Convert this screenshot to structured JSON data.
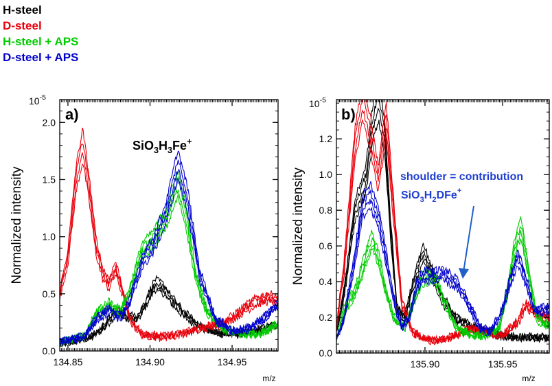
{
  "colors": {
    "H-steel": "#000000",
    "D-steel": "#e8000b",
    "H-steel + APS": "#00cc00",
    "D-steel + APS": "#0000cc"
  },
  "legend": [
    {
      "label": "H-steel",
      "color": "#000000"
    },
    {
      "label": "D-steel",
      "color": "#e8000b"
    },
    {
      "label": "H-steel + APS",
      "color": "#00cc00"
    },
    {
      "label": "D-steel + APS",
      "color": "#0000cc"
    }
  ],
  "chart_data": [
    {
      "type": "line",
      "panel_label": "a)",
      "annotation": {
        "base": "SiO",
        "sub1": "3",
        "mid": "H",
        "sub2": "3",
        "end": "Fe",
        "sup": "+"
      },
      "xlabel": "m/z",
      "ylabel": "Normalized intensity",
      "y_exponent_label": "10",
      "y_exponent_sup": "-5",
      "xlim": [
        134.845,
        134.978
      ],
      "ylim": [
        0,
        2.2
      ],
      "xticks": [
        134.85,
        134.9,
        134.95
      ],
      "xtick_labels": [
        "134.85",
        "134.90",
        "134.95"
      ],
      "yticks": [
        0.0,
        0.5,
        1.0,
        1.5,
        2.0
      ],
      "ytick_labels": [
        "0.0",
        "0.5",
        "1.0",
        "1.5",
        "2.0"
      ],
      "series": [
        {
          "name": "H-steel",
          "color": "#000000",
          "x": [
            134.845,
            134.855,
            134.865,
            134.872,
            134.88,
            134.886,
            134.893,
            134.898,
            134.903,
            134.908,
            134.913,
            134.92,
            134.93,
            134.94,
            134.95,
            134.96,
            134.97,
            134.978
          ],
          "y": [
            0.07,
            0.09,
            0.13,
            0.22,
            0.36,
            0.3,
            0.3,
            0.45,
            0.6,
            0.56,
            0.46,
            0.34,
            0.22,
            0.17,
            0.15,
            0.17,
            0.2,
            0.24
          ]
        },
        {
          "name": "D-steel",
          "color": "#e8000b",
          "x": [
            134.845,
            134.85,
            134.855,
            134.859,
            134.863,
            134.867,
            134.871,
            134.875,
            134.879,
            134.883,
            134.888,
            134.895,
            134.905,
            134.915,
            134.925,
            134.935,
            134.945,
            134.955,
            134.965,
            134.972,
            134.978
          ],
          "y": [
            0.5,
            0.85,
            1.55,
            1.85,
            1.45,
            0.95,
            0.7,
            0.6,
            0.75,
            0.55,
            0.28,
            0.15,
            0.13,
            0.14,
            0.18,
            0.22,
            0.25,
            0.35,
            0.45,
            0.48,
            0.46
          ]
        },
        {
          "name": "H-steel + APS",
          "color": "#00cc00",
          "x": [
            134.845,
            134.86,
            134.868,
            134.875,
            134.882,
            134.888,
            134.895,
            134.902,
            134.91,
            134.917,
            134.922,
            134.928,
            134.935,
            134.945,
            134.955,
            134.965,
            134.97,
            134.978
          ],
          "y": [
            0.08,
            0.13,
            0.35,
            0.42,
            0.35,
            0.55,
            0.9,
            1.0,
            1.2,
            1.5,
            1.2,
            0.65,
            0.35,
            0.2,
            0.15,
            0.15,
            0.18,
            0.24
          ]
        },
        {
          "name": "D-steel + APS",
          "color": "#0000cc",
          "x": [
            134.845,
            134.86,
            134.868,
            134.875,
            134.882,
            134.888,
            134.895,
            134.902,
            134.91,
            134.917,
            134.923,
            134.93,
            134.94,
            134.95,
            134.96,
            134.97,
            134.978
          ],
          "y": [
            0.08,
            0.13,
            0.3,
            0.37,
            0.3,
            0.45,
            0.8,
            0.95,
            1.25,
            1.68,
            1.35,
            0.7,
            0.28,
            0.18,
            0.2,
            0.3,
            0.42
          ]
        }
      ]
    },
    {
      "type": "line",
      "panel_label": "b)",
      "annotation_line1": "shoulder = contribution",
      "annotation_line2": {
        "base": "SiO",
        "sub1": "3",
        "mid": "H",
        "sub2": "2",
        "end": "DFe",
        "sup": "+"
      },
      "xlabel": "m/z",
      "ylabel": "Normalized intensity",
      "y_exponent_label": "10",
      "y_exponent_sup": "-5",
      "xlim": [
        135.843,
        135.98
      ],
      "ylim": [
        0,
        1.42
      ],
      "xticks": [
        135.9,
        135.95
      ],
      "xtick_labels": [
        "135.90",
        "135.95"
      ],
      "yticks": [
        0.0,
        0.2,
        0.4,
        0.6,
        0.8,
        1.0,
        1.2
      ],
      "ytick_labels": [
        "0.0",
        "0.2",
        "0.4",
        "0.6",
        "0.8",
        "1.0",
        "1.2"
      ],
      "series": [
        {
          "name": "H-steel",
          "color": "#000000",
          "x": [
            135.843,
            135.848,
            135.855,
            135.862,
            135.866,
            135.87,
            135.874,
            135.878,
            135.882,
            135.887,
            135.893,
            135.899,
            135.905,
            135.912,
            135.92,
            135.93,
            135.94,
            135.95,
            135.96,
            135.97,
            135.98
          ],
          "y": [
            0.12,
            0.35,
            0.82,
            1.0,
            1.3,
            1.45,
            1.25,
            0.7,
            0.25,
            0.2,
            0.42,
            0.58,
            0.45,
            0.3,
            0.2,
            0.15,
            0.12,
            0.1,
            0.09,
            0.09,
            0.09
          ]
        },
        {
          "name": "D-steel",
          "color": "#e8000b",
          "x": [
            135.843,
            135.848,
            135.855,
            135.86,
            135.865,
            135.87,
            135.875,
            135.88,
            135.885,
            135.892,
            135.9,
            135.91,
            135.92,
            135.93,
            135.94,
            135.95,
            135.96,
            135.965,
            135.972,
            135.98
          ],
          "y": [
            0.15,
            0.5,
            1.2,
            1.45,
            1.25,
            1.0,
            1.35,
            0.8,
            0.3,
            0.12,
            0.08,
            0.07,
            0.1,
            0.14,
            0.12,
            0.1,
            0.18,
            0.28,
            0.22,
            0.2
          ]
        },
        {
          "name": "H-steel + APS",
          "color": "#00cc00",
          "x": [
            135.843,
            135.848,
            135.855,
            135.862,
            135.866,
            135.87,
            135.875,
            135.88,
            135.887,
            135.893,
            135.898,
            135.903,
            135.908,
            135.913,
            135.92,
            135.93,
            135.94,
            135.948,
            135.953,
            135.958,
            135.962,
            135.966,
            135.972,
            135.98
          ],
          "y": [
            0.08,
            0.25,
            0.35,
            0.55,
            0.65,
            0.55,
            0.35,
            0.2,
            0.15,
            0.3,
            0.42,
            0.44,
            0.4,
            0.28,
            0.15,
            0.1,
            0.1,
            0.15,
            0.35,
            0.62,
            0.72,
            0.5,
            0.2,
            0.15
          ]
        },
        {
          "name": "D-steel + APS",
          "color": "#0000cc",
          "x": [
            135.843,
            135.848,
            135.855,
            135.86,
            135.865,
            135.87,
            135.875,
            135.88,
            135.885,
            135.89,
            135.895,
            135.9,
            135.905,
            135.912,
            135.92,
            135.928,
            135.935,
            135.942,
            135.95,
            135.955,
            135.96,
            135.965,
            135.97,
            135.975,
            135.98
          ],
          "y": [
            0.08,
            0.2,
            0.55,
            0.85,
            0.9,
            0.78,
            0.55,
            0.3,
            0.15,
            0.2,
            0.4,
            0.45,
            0.44,
            0.45,
            0.4,
            0.28,
            0.15,
            0.12,
            0.25,
            0.42,
            0.55,
            0.42,
            0.25,
            0.25,
            0.25
          ]
        }
      ]
    }
  ]
}
